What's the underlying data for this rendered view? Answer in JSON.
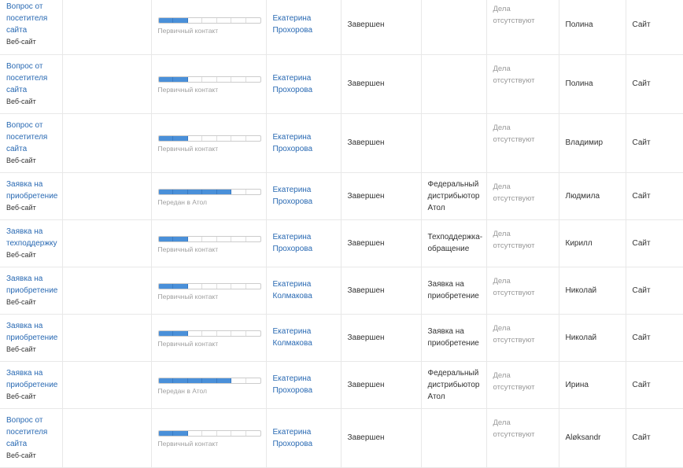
{
  "accent": "#4a90d9",
  "total_stages": 7,
  "rows": [
    {
      "title": "Вопрос от посетителя сайта",
      "source": "Веб-сайт",
      "stage": "Первичный контакт",
      "filled": 2,
      "manager": "Екатерина Прохорова",
      "status": "Завершен",
      "product": "",
      "activities": "Дела отсутствуют",
      "contact": "Полина",
      "channel": "Сайт"
    },
    {
      "title": "Вопрос от посетителя сайта",
      "source": "Веб-сайт",
      "stage": "Первичный контакт",
      "filled": 2,
      "manager": "Екатерина Прохорова",
      "status": "Завершен",
      "product": "",
      "activities": "Дела отсутствуют",
      "contact": "Полина",
      "channel": "Сайт"
    },
    {
      "title": "Вопрос от посетителя сайта",
      "source": "Веб-сайт",
      "stage": "Первичный контакт",
      "filled": 2,
      "manager": "Екатерина Прохорова",
      "status": "Завершен",
      "product": "",
      "activities": "Дела отсутствуют",
      "contact": "Владимир",
      "channel": "Сайт"
    },
    {
      "title": "Заявка на приобретение",
      "source": "Веб-сайт",
      "stage": "Передан в Атол",
      "filled": 5,
      "manager": "Екатерина Прохорова",
      "status": "Завершен",
      "product": "Федеральный дистрибьютор Атол",
      "activities": "Дела отсутствуют",
      "contact": "Людмила",
      "channel": "Сайт"
    },
    {
      "title": "Заявка на техподдержку",
      "source": "Веб-сайт",
      "stage": "Первичный контакт",
      "filled": 2,
      "manager": "Екатерина Прохорова",
      "status": "Завершен",
      "product": "Техподдержка-обращение",
      "activities": "Дела отсутствуют",
      "contact": "Кирилл",
      "channel": "Сайт"
    },
    {
      "title": "Заявка на приобретение",
      "source": "Веб-сайт",
      "stage": "Первичный контакт",
      "filled": 2,
      "manager": "Екатерина Колмакова",
      "status": "Завершен",
      "product": "Заявка на приобретение",
      "activities": "Дела отсутствуют",
      "contact": "Николай",
      "channel": "Сайт"
    },
    {
      "title": "Заявка на приобретение",
      "source": "Веб-сайт",
      "stage": "Первичный контакт",
      "filled": 2,
      "manager": "Екатерина Колмакова",
      "status": "Завершен",
      "product": "Заявка на приобретение",
      "activities": "Дела отсутствуют",
      "contact": "Николай",
      "channel": "Сайт"
    },
    {
      "title": "Заявка на приобретение",
      "source": "Веб-сайт",
      "stage": "Передан в Атол",
      "filled": 5,
      "manager": "Екатерина Прохорова",
      "status": "Завершен",
      "product": "Федеральный дистрибьютор Атол",
      "activities": "Дела отсутствуют",
      "contact": "Ирина",
      "channel": "Сайт"
    },
    {
      "title": "Вопрос от посетителя сайта",
      "source": "Веб-сайт",
      "stage": "Первичный контакт",
      "filled": 2,
      "manager": "Екатерина Прохорова",
      "status": "Завершен",
      "product": "",
      "activities": "Дела отсутствуют",
      "contact": "Aløksandr",
      "channel": "Сайт"
    }
  ]
}
